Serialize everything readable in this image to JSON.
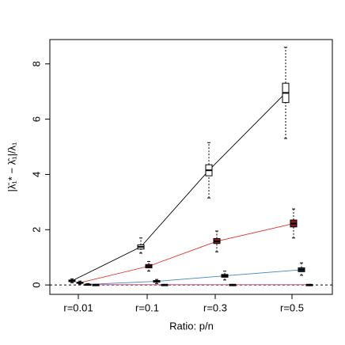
{
  "chart_data": {
    "type": "boxplot",
    "x_label": "Ratio: p/n",
    "y_label": "|λ̄₁* − λ̂₁|/λ₁",
    "categories": [
      "r=0.01",
      "r=0.1",
      "r=0.3",
      "r=0.5"
    ],
    "ylim": [
      -0.34,
      8.88
    ],
    "yticks": [
      0,
      2,
      4,
      6,
      8
    ],
    "reference_line": 0,
    "series": [
      {
        "line_color": "#000000",
        "color": "#ffffff",
        "min": [
          0.08,
          1.15,
          3.15,
          5.3
        ],
        "q1": [
          0.12,
          1.3,
          3.95,
          6.6
        ],
        "median": [
          0.15,
          1.38,
          4.15,
          6.95
        ],
        "q3": [
          0.18,
          1.45,
          4.35,
          7.3
        ],
        "max": [
          0.22,
          1.7,
          5.15,
          8.6
        ]
      },
      {
        "line_color": "#e03030",
        "color": "#8b1a1a",
        "min": [
          0.03,
          0.5,
          1.2,
          1.7
        ],
        "q1": [
          0.06,
          0.62,
          1.5,
          2.1
        ],
        "median": [
          0.08,
          0.68,
          1.58,
          2.22
        ],
        "q3": [
          0.1,
          0.74,
          1.68,
          2.35
        ],
        "max": [
          0.14,
          0.85,
          1.95,
          2.75
        ]
      },
      {
        "line_color": "#3d85c6",
        "color": "#1f3a4d",
        "min": [
          0.0,
          0.05,
          0.18,
          0.35
        ],
        "q1": [
          0.01,
          0.1,
          0.28,
          0.48
        ],
        "median": [
          0.02,
          0.13,
          0.33,
          0.55
        ],
        "q3": [
          0.03,
          0.16,
          0.38,
          0.62
        ],
        "max": [
          0.05,
          0.2,
          0.5,
          0.8
        ]
      },
      {
        "line_color": "#cc3366",
        "color": "#000000",
        "min": [
          0.0,
          0.0,
          0.0,
          0.0
        ],
        "q1": [
          0.005,
          0.005,
          0.005,
          0.005
        ],
        "median": [
          0.01,
          0.01,
          0.01,
          0.01
        ],
        "q3": [
          0.015,
          0.015,
          0.015,
          0.015
        ],
        "max": [
          0.02,
          0.02,
          0.02,
          0.02
        ]
      }
    ]
  }
}
